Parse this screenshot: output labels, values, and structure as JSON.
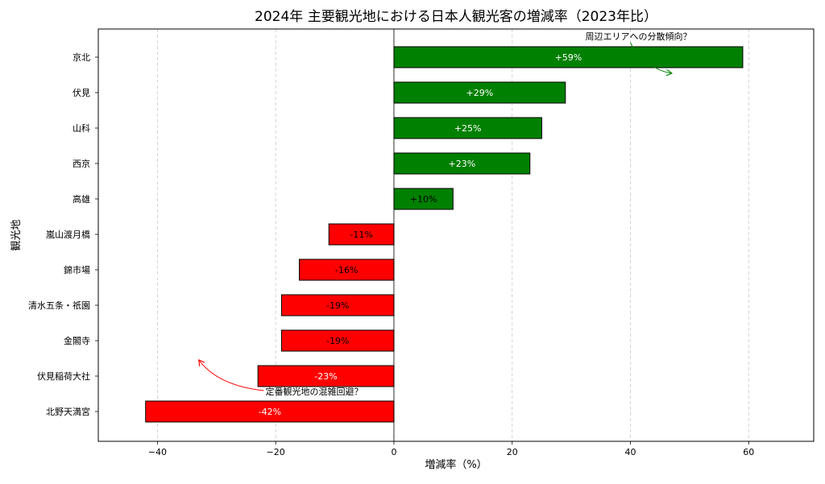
{
  "chart_data": {
    "type": "bar",
    "orientation": "horizontal",
    "title": "2024年 主要観光地における日本人観光客の増減率（2023年比）",
    "xlabel": "増減率（%）",
    "ylabel": "観光地",
    "xlim": [
      -50,
      71
    ],
    "xticks": [
      -40,
      -20,
      0,
      20,
      40,
      60
    ],
    "xtick_labels": [
      "−40",
      "−20",
      "0",
      "20",
      "40",
      "60"
    ],
    "grid": "vertical dashed",
    "categories": [
      "京北",
      "伏見",
      "山科",
      "西京",
      "高雄",
      "嵐山渡月橋",
      "錦市場",
      "清水五条・祇園",
      "金閣寺",
      "伏見稲荷大社",
      "北野天満宮"
    ],
    "values": [
      59,
      29,
      25,
      23,
      10,
      -11,
      -16,
      -19,
      -19,
      -23,
      -42
    ],
    "value_labels": [
      "+59%",
      "+29%",
      "+25%",
      "+23%",
      "+10%",
      "-11%",
      "-16%",
      "-19%",
      "-19%",
      "-23%",
      "-42%"
    ],
    "colors": {
      "positive": "#008000",
      "negative": "#ff0000"
    },
    "annotations": [
      {
        "text": "周辺エリアへの分散傾向？",
        "text_pos": [
          40,
          "京北"
        ],
        "arrow_to": [
          47,
          "京北"
        ],
        "color": "#008000"
      },
      {
        "text": "定番観光地の混雑回避？",
        "text_pos": [
          -22,
          "伏見稲荷大社"
        ],
        "arrow_to": [
          -33,
          "伏見稲荷大社"
        ],
        "color": "#ff0000"
      }
    ]
  }
}
